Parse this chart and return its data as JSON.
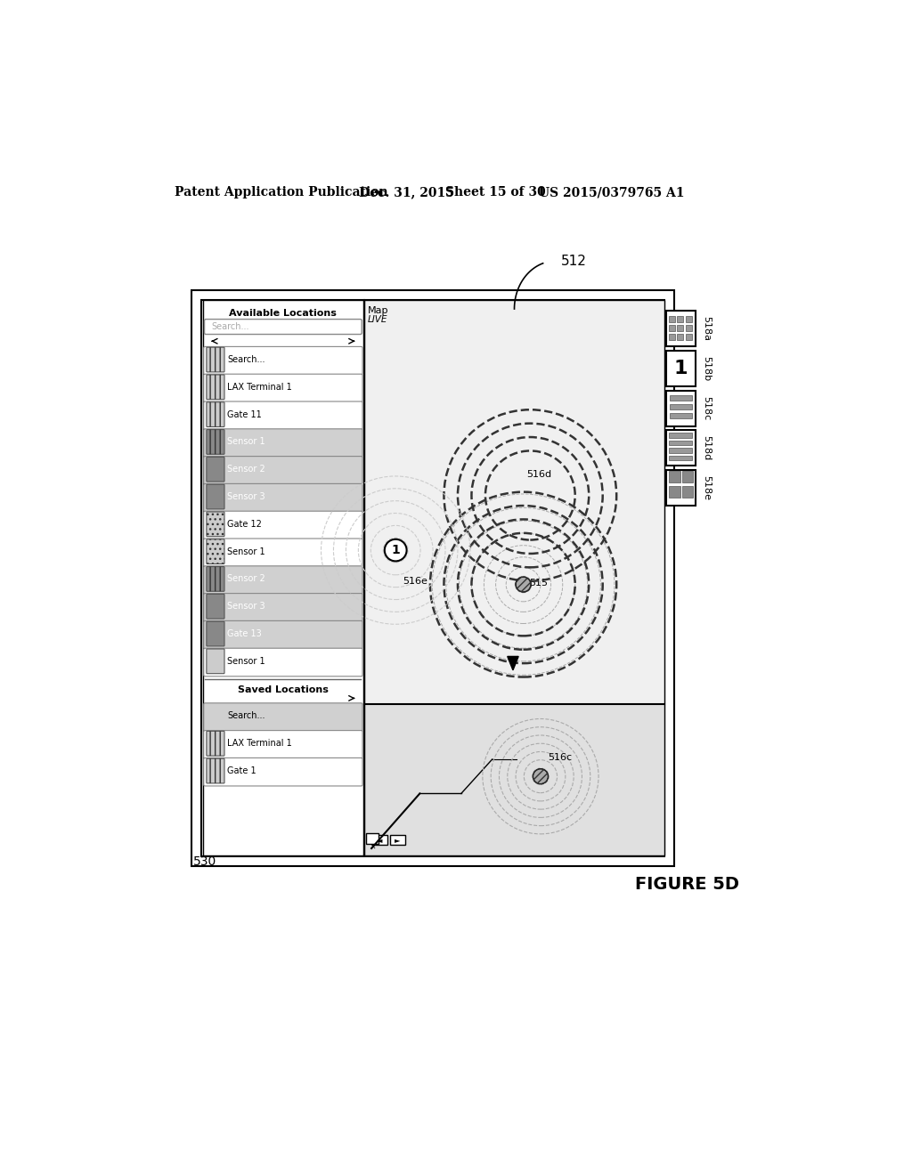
{
  "bg_color": "#ffffff",
  "header_text": "Patent Application Publication",
  "header_date": "Dec. 31, 2015",
  "header_sheet": "Sheet 15 of 30",
  "header_patent": "US 2015/0379765 A1",
  "figure_label": "FIGURE 5D",
  "label_512": "512",
  "label_530": "530",
  "label_515": "515",
  "label_516c": "516c",
  "label_516d": "516d",
  "label_516e": "516e",
  "label_518a": "518a",
  "label_518b": "518b",
  "label_518c": "518c",
  "label_518d": "518d",
  "label_518e": "518e",
  "map_label": "Map",
  "live_label": "LIVE",
  "avail_loc": "Available Locations",
  "saved_loc": "Saved Locations",
  "list_items": [
    "Search...",
    "LAX Terminal 1",
    "Gate 11",
    "Sensor 1",
    "Sensor 2",
    "Sensor 3",
    "Gate 12",
    "Sensor 1",
    "Sensor 2",
    "Sensor 3",
    "Gate 13",
    "Sensor 1"
  ],
  "saved_items": [
    "Search...",
    "LAX Terminal 1",
    "Gate 1"
  ]
}
